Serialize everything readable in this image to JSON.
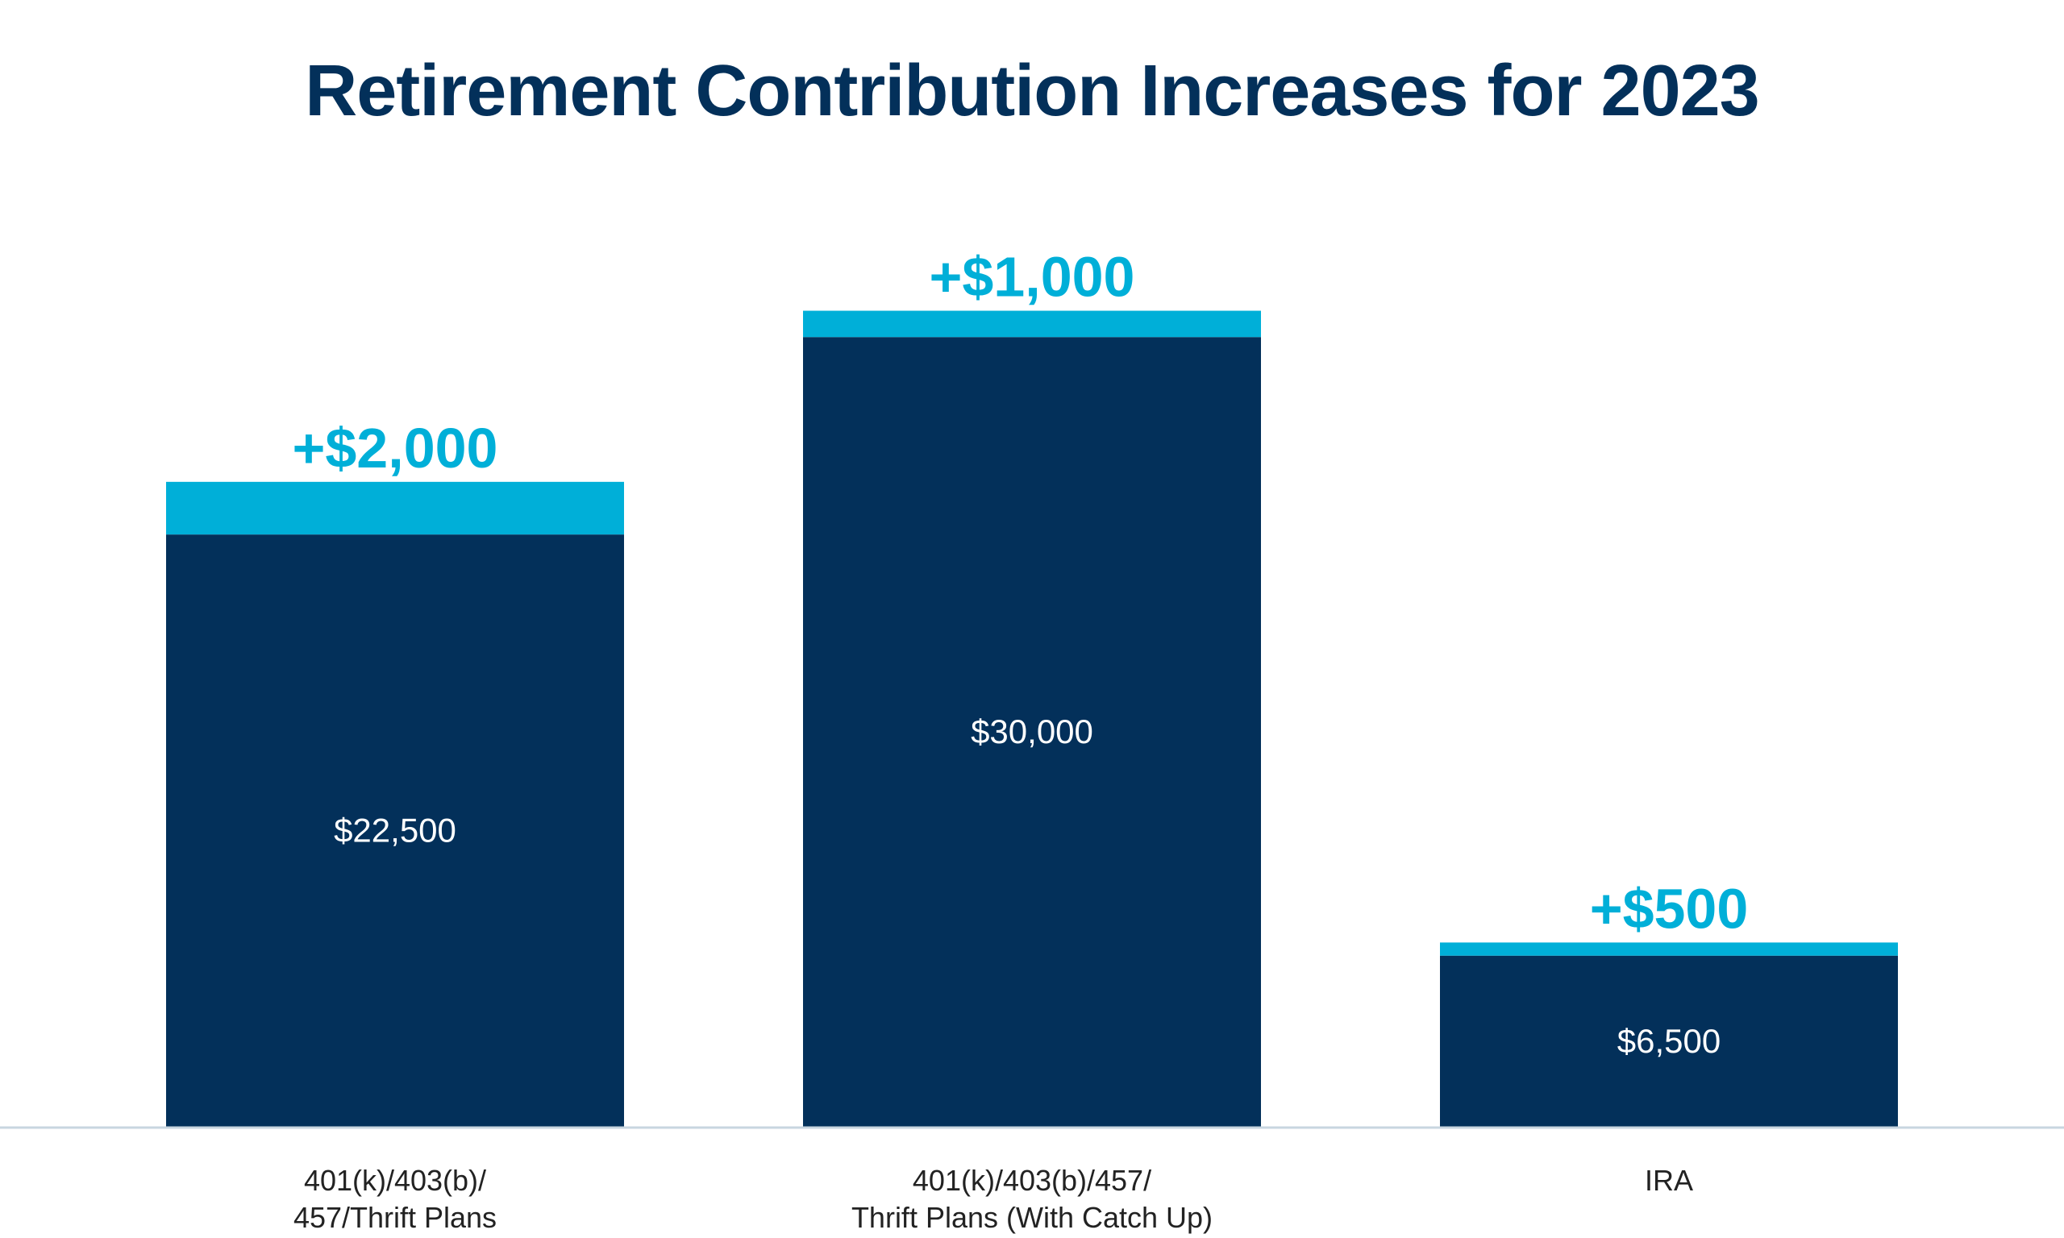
{
  "chart_data": {
    "type": "bar",
    "stacked": true,
    "title": "Retirement Contribution Increases for 2023",
    "categories": [
      "401(k)/403(b)/\n457/Thrift Plans",
      "401(k)/403(b)/457/\nThrift Plans (With Catch Up)",
      "IRA"
    ],
    "category_lines": [
      [
        "401(k)/403(b)/",
        "457/Thrift Plans"
      ],
      [
        "401(k)/403(b)/457/",
        "Thrift Plans (With Catch Up)"
      ],
      [
        "IRA"
      ]
    ],
    "series": [
      {
        "values": [
          22500,
          30000,
          6500
        ],
        "labels": [
          "$22,500",
          "$30,000",
          "$6,500"
        ],
        "color": "#03305a"
      },
      {
        "values": [
          2000,
          1000,
          500
        ],
        "labels": [
          "+$2,000",
          "+$1,000",
          "+$500"
        ],
        "color": "#00afd8"
      }
    ],
    "ylim": [
      0,
      31000
    ],
    "grid": false,
    "legend": "none",
    "xlabel": "",
    "ylabel": ""
  }
}
